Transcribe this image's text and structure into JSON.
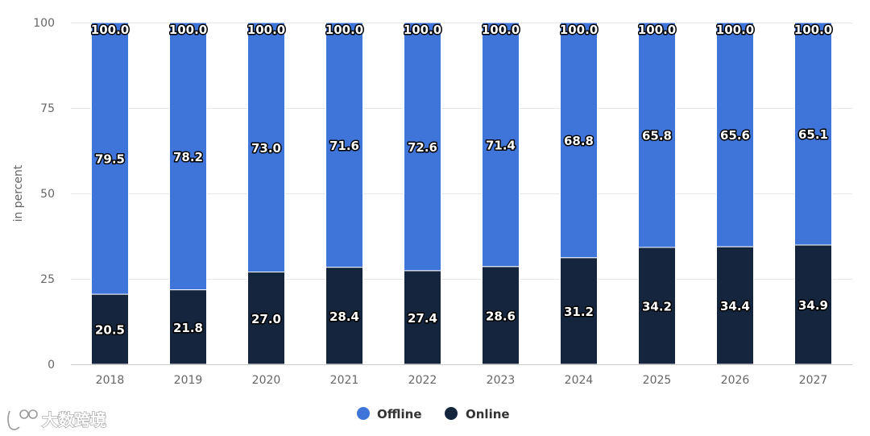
{
  "chart_data": {
    "type": "bar",
    "stacked": true,
    "categories": [
      "2018",
      "2019",
      "2020",
      "2021",
      "2022",
      "2023",
      "2024",
      "2025",
      "2026",
      "2027"
    ],
    "series": [
      {
        "name": "Online",
        "color": "#14253d",
        "values": [
          20.5,
          21.8,
          27.0,
          28.4,
          27.4,
          28.6,
          31.2,
          34.2,
          34.4,
          34.9
        ]
      },
      {
        "name": "Offline",
        "color": "#3f75d8",
        "values": [
          79.5,
          78.2,
          73.0,
          71.6,
          72.6,
          71.4,
          68.8,
          65.8,
          65.6,
          65.1
        ]
      }
    ],
    "totals": [
      100.0,
      100.0,
      100.0,
      100.0,
      100.0,
      100.0,
      100.0,
      100.0,
      100.0,
      100.0
    ],
    "ylabel": "in percent",
    "xlabel": "",
    "ylim": [
      0,
      100
    ],
    "yticks": [
      0,
      25,
      50,
      75,
      100
    ],
    "grid": true,
    "legend": {
      "position": "bottom-center",
      "entries": [
        {
          "label": "Offline",
          "color": "#3f75d8"
        },
        {
          "label": "Online",
          "color": "#14253d"
        }
      ]
    }
  },
  "watermark": {
    "text": "大数跨境"
  }
}
